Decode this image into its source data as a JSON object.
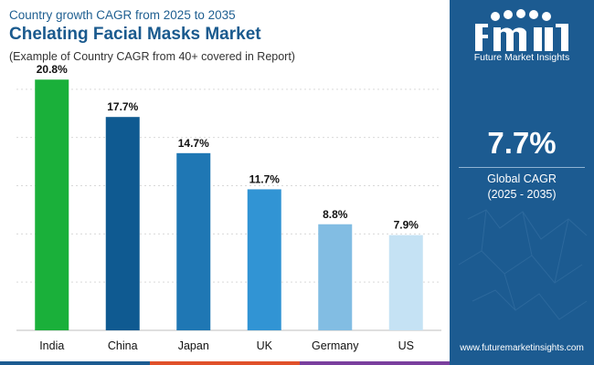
{
  "header": {
    "subtitle": "Country growth CAGR from 2025 to 2035",
    "title": "Chelating Facial Masks Market",
    "note": "(Example of Country CAGR from 40+ covered in Report)"
  },
  "chart_data": {
    "type": "bar",
    "title": "Chelating Facial Masks Market",
    "subtitle": "Country growth CAGR from 2025 to 2035",
    "categories": [
      "India",
      "China",
      "Japan",
      "UK",
      "Germany",
      "US"
    ],
    "values": [
      20.8,
      17.7,
      14.7,
      11.7,
      8.8,
      7.9
    ],
    "labels": [
      "20.8%",
      "17.7%",
      "14.7%",
      "11.7%",
      "8.8%",
      "7.9%"
    ],
    "colors": [
      "#1ab03a",
      "#0f5a91",
      "#1f77b4",
      "#3194d4",
      "#82bde3",
      "#c5e2f4"
    ],
    "ylim": [
      0,
      21.5
    ],
    "grid": true,
    "xlabel": "",
    "ylabel": ""
  },
  "panel": {
    "cagr_value": "7.7%",
    "cagr_label": "Global CAGR",
    "cagr_period": "(2025 - 2035)",
    "brand": "Future Market Insights",
    "website": "www.futuremarketinsights.com",
    "background": "#1c5b91"
  },
  "strip_colors": [
    "#1c5b91",
    "#e0502a",
    "#7a3f9e"
  ]
}
